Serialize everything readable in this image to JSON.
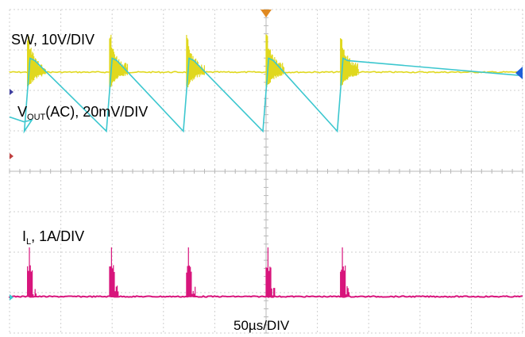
{
  "chart_data": {
    "type": "line",
    "traces": [
      {
        "name_parts": [
          "SW, 10V/DIV"
        ],
        "color": "#e0d81e"
      },
      {
        "name_parts": [
          "V",
          "OUT",
          "(AC), 20mV/DIV"
        ],
        "color": "#3cc7cf"
      },
      {
        "name_parts": [
          "I",
          "L",
          ", 1A/DIV"
        ],
        "color": "#d8157c"
      }
    ],
    "timebase": "50µs/DIV",
    "horizontal_divisions": 10,
    "vertical_divisions": 8,
    "grid": true,
    "switching_events_div": [
      0.35,
      1.95,
      3.45,
      5.0,
      6.45
    ],
    "vout_ripple": {
      "peak_div": 0.55,
      "trough_div": -0.15,
      "rise_time_div": 0.05
    },
    "markers": {
      "trigger": {
        "color": "#e08a22"
      },
      "right_level": {
        "color": "#1f5fd8"
      }
    }
  }
}
